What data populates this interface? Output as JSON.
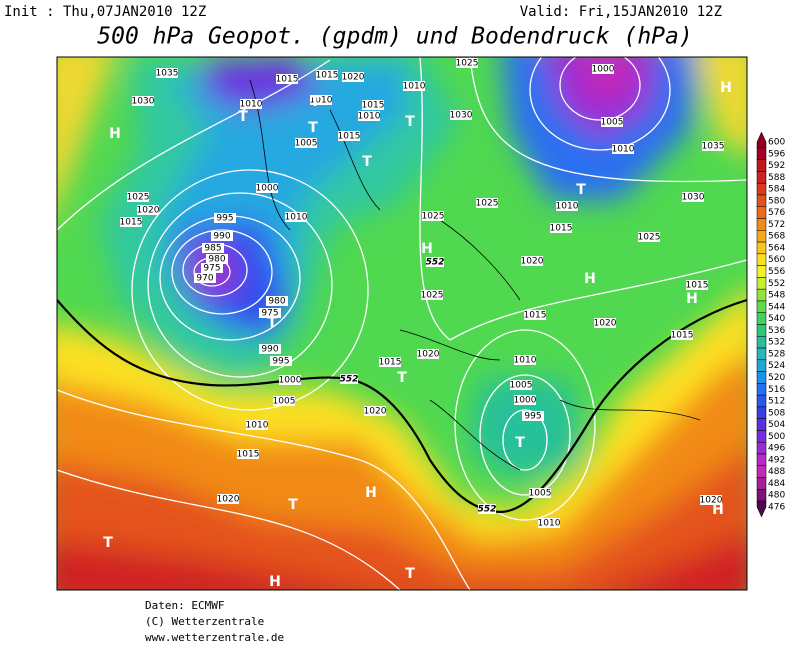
{
  "header": {
    "init": "Init : Thu,07JAN2010 12Z",
    "valid": "Valid: Fri,15JAN2010 12Z",
    "title": "500 hPa Geopot. (gpdm) und Bodendruck (hPa)"
  },
  "isobar_labels": [
    1035,
    1015,
    1015,
    1020,
    1030,
    1010,
    1010,
    1015,
    1010,
    1010,
    1025,
    1000,
    1005,
    1010,
    1035,
    1030,
    1015,
    1005,
    1000,
    1010,
    1025,
    1020,
    1015,
    995,
    990,
    985,
    980,
    975,
    970,
    980,
    975,
    990,
    995,
    1000,
    1005,
    1010,
    1015,
    1020,
    1015,
    1020,
    1020,
    1025,
    1025,
    1010,
    1015,
    1030,
    1025,
    1020,
    1025,
    1015,
    1020,
    1015,
    1015,
    1010,
    1005,
    1000,
    995,
    1005,
    1010,
    1020
  ],
  "geopotential_labels": [
    552,
    552,
    552
  ],
  "high_markers": [
    "H",
    "H",
    "H",
    "H",
    "H",
    "H",
    "H",
    "H"
  ],
  "low_markers": [
    "T",
    "T",
    "T",
    "T",
    "T",
    "T",
    "T",
    "T",
    "T",
    "T",
    "T",
    "T"
  ],
  "colorbar": {
    "levels": [
      600,
      596,
      592,
      588,
      584,
      580,
      576,
      572,
      568,
      564,
      560,
      556,
      552,
      548,
      544,
      540,
      536,
      532,
      528,
      524,
      520,
      516,
      512,
      508,
      504,
      500,
      496,
      492,
      488,
      484,
      480,
      476
    ],
    "colors": [
      "#8b0022",
      "#a50021",
      "#be1a1a",
      "#d02020",
      "#dc3a1e",
      "#e4521c",
      "#ec6a1a",
      "#f28a18",
      "#f7a818",
      "#fbc41a",
      "#fde020",
      "#f4f02a",
      "#c8ee30",
      "#8ee63a",
      "#5cdc48",
      "#3cd45c",
      "#2cc878",
      "#28c09a",
      "#24b8bc",
      "#1ea8d8",
      "#1c90ea",
      "#2272f0",
      "#2c56ee",
      "#3a3ce8",
      "#5a30e0",
      "#7a2cdc",
      "#9a2ad4",
      "#b52ac8",
      "#c42ab8",
      "#a81c9e",
      "#7c1478",
      "#4a0a4a"
    ]
  },
  "footer": [
    "Daten: ECMWF",
    "(C) Wetterzentrale",
    "www.wetterzentrale.de"
  ]
}
